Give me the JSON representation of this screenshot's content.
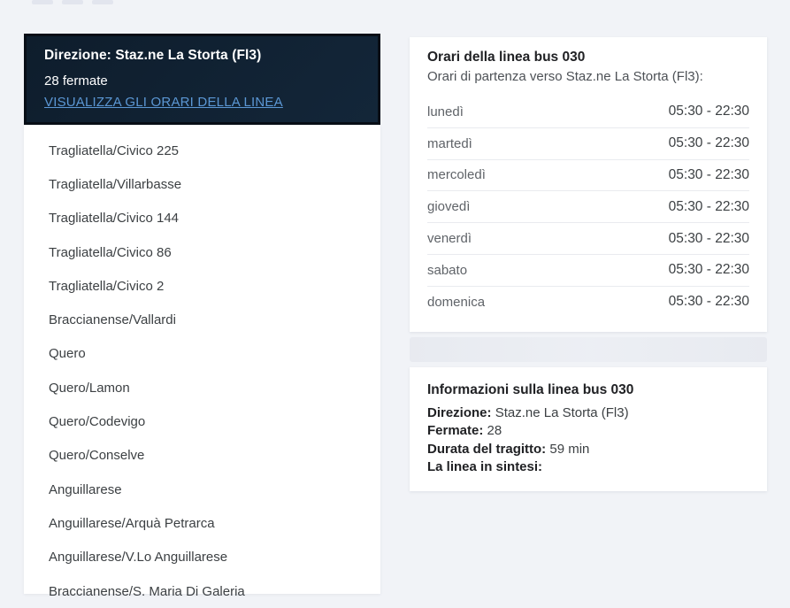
{
  "colors": {
    "page_bg": "#f1f3f7",
    "header_bg": "#102233",
    "link_blue": "#5b97d4",
    "text_dark": "#3c4043",
    "text_gray": "#5f6368"
  },
  "direction_header": {
    "title": "Direzione: Staz.ne La Storta (Fl3)",
    "stops_count": "28 fermate",
    "link_label": "VISUALIZZA GLI ORARI DELLA LINEA"
  },
  "stops": [
    "Tragliatella/Civico 225",
    "Tragliatella/Villarbasse",
    "Tragliatella/Civico 144",
    "Tragliatella/Civico 86",
    "Tragliatella/Civico 2",
    "Braccianense/Vallardi",
    "Quero",
    "Quero/Lamon",
    "Quero/Codevigo",
    "Quero/Conselve",
    "Anguillarese",
    "Anguillarese/Arquà Petrarca",
    "Anguillarese/V.Lo Anguillarese",
    "Braccianense/S. Maria Di Galeria"
  ],
  "schedule_card": {
    "title": "Orari della linea bus 030",
    "subtitle": "Orari di partenza verso Staz.ne La Storta (Fl3):",
    "rows": [
      {
        "day": "lunedì",
        "hours": "05:30 - 22:30"
      },
      {
        "day": "martedì",
        "hours": "05:30 - 22:30"
      },
      {
        "day": "mercoledì",
        "hours": "05:30 - 22:30"
      },
      {
        "day": "giovedì",
        "hours": "05:30 - 22:30"
      },
      {
        "day": "venerdì",
        "hours": "05:30 - 22:30"
      },
      {
        "day": "sabato",
        "hours": "05:30 - 22:30"
      },
      {
        "day": "domenica",
        "hours": "05:30 - 22:30"
      }
    ]
  },
  "info_card": {
    "title": "Informazioni sulla linea bus 030",
    "fields": [
      {
        "label": "Direzione:",
        "value": "Staz.ne La Storta (Fl3)"
      },
      {
        "label": "Fermate:",
        "value": "28"
      },
      {
        "label": "Durata del tragitto:",
        "value": "59 min"
      },
      {
        "label": "La linea in sintesi:",
        "value": ""
      }
    ]
  }
}
